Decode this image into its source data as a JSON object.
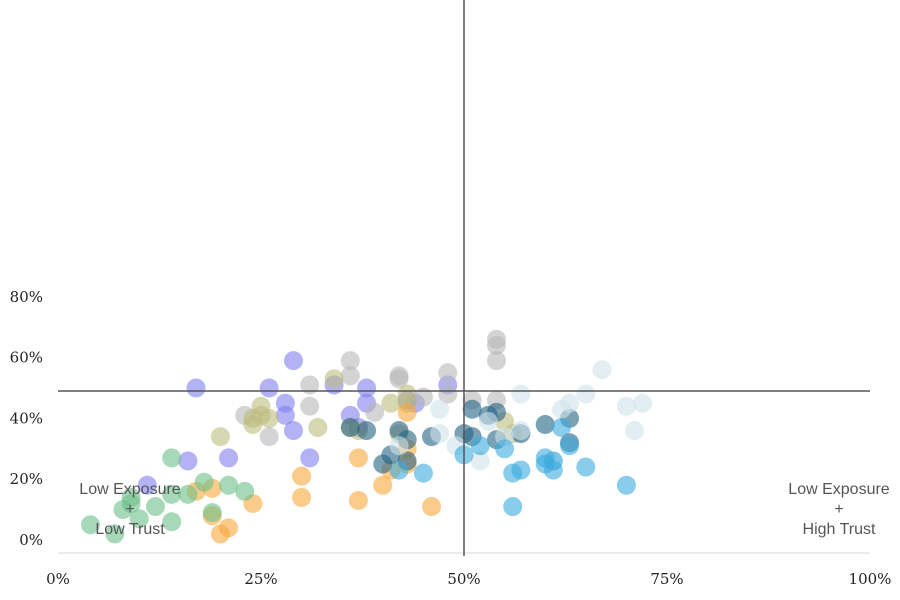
{
  "chart_data": {
    "type": "scatter",
    "title": "",
    "xlabel": "",
    "ylabel": "",
    "xlim": [
      0,
      100
    ],
    "ylim": [
      0,
      90
    ],
    "x_ticks": [
      "0%",
      "25%",
      "50%",
      "75%",
      "100%"
    ],
    "y_ticks": [
      "0%",
      "20%",
      "40%",
      "60%",
      "80%"
    ],
    "grid": false,
    "reference_lines": {
      "x": 50,
      "y": 49
    },
    "quadrant_labels": {
      "bottom_left": [
        "Low Exposure",
        "+",
        "Low Trust"
      ],
      "bottom_right": [
        "Low Exposure",
        "+",
        "High Trust"
      ]
    },
    "series": [
      {
        "color": "#7f7fef",
        "points": [
          [
            11,
            18
          ],
          [
            16,
            26
          ],
          [
            17,
            50
          ],
          [
            21,
            27
          ],
          [
            26,
            50
          ],
          [
            28,
            45
          ],
          [
            29,
            59
          ],
          [
            28,
            41
          ],
          [
            29,
            36
          ],
          [
            31,
            27
          ],
          [
            34,
            51
          ],
          [
            36,
            41
          ],
          [
            37,
            37
          ],
          [
            38,
            50
          ],
          [
            38,
            45
          ],
          [
            43,
            46
          ],
          [
            44,
            45
          ],
          [
            48,
            51
          ]
        ]
      },
      {
        "color": "#b7b7b7",
        "points": [
          [
            23,
            41
          ],
          [
            26,
            34
          ],
          [
            31,
            51
          ],
          [
            31,
            44
          ],
          [
            36,
            59
          ],
          [
            36,
            54
          ],
          [
            39,
            42
          ],
          [
            42,
            54
          ],
          [
            42,
            53
          ],
          [
            45,
            47
          ],
          [
            48,
            55
          ],
          [
            48,
            48
          ],
          [
            54,
            66
          ],
          [
            54,
            64
          ],
          [
            54,
            59
          ],
          [
            54,
            46
          ],
          [
            51,
            46
          ]
        ]
      },
      {
        "color": "#bdbd7f",
        "points": [
          [
            20,
            34
          ],
          [
            24,
            38
          ],
          [
            24,
            40
          ],
          [
            25,
            44
          ],
          [
            25,
            41
          ],
          [
            26,
            40
          ],
          [
            32,
            37
          ],
          [
            34,
            53
          ],
          [
            36,
            37
          ],
          [
            37,
            36
          ],
          [
            41,
            45
          ],
          [
            42,
            35
          ],
          [
            43,
            48
          ],
          [
            43,
            45
          ],
          [
            55,
            39
          ],
          [
            56,
            35
          ]
        ]
      },
      {
        "color": "#f6a83a",
        "points": [
          [
            17,
            16
          ],
          [
            19,
            17
          ],
          [
            19,
            8
          ],
          [
            20,
            2
          ],
          [
            21,
            4
          ],
          [
            24,
            12
          ],
          [
            30,
            21
          ],
          [
            30,
            14
          ],
          [
            37,
            27
          ],
          [
            37,
            13
          ],
          [
            40,
            18
          ],
          [
            41,
            23
          ],
          [
            43,
            42
          ],
          [
            43,
            30
          ],
          [
            43,
            25
          ],
          [
            46,
            11
          ]
        ]
      },
      {
        "color": "#6cbf8a",
        "points": [
          [
            4,
            5
          ],
          [
            7,
            2
          ],
          [
            8,
            10
          ],
          [
            9,
            14
          ],
          [
            9,
            12
          ],
          [
            10,
            7
          ],
          [
            12,
            11
          ],
          [
            14,
            27
          ],
          [
            14,
            15
          ],
          [
            14,
            6
          ],
          [
            16,
            15
          ],
          [
            18,
            19
          ],
          [
            19,
            9
          ],
          [
            21,
            18
          ],
          [
            23,
            16
          ]
        ]
      },
      {
        "color": "#236383",
        "points": [
          [
            36,
            37
          ],
          [
            38,
            36
          ],
          [
            40,
            25
          ],
          [
            41,
            28
          ],
          [
            42,
            36
          ],
          [
            43,
            26
          ],
          [
            43,
            33
          ],
          [
            46,
            34
          ],
          [
            50,
            35
          ],
          [
            51,
            34
          ],
          [
            51,
            43
          ],
          [
            53,
            41
          ],
          [
            54,
            42
          ],
          [
            54,
            33
          ],
          [
            57,
            35
          ],
          [
            60,
            38
          ],
          [
            63,
            40
          ],
          [
            63,
            32
          ]
        ]
      },
      {
        "color": "#cfe3ea",
        "points": [
          [
            42,
            31
          ],
          [
            47,
            43
          ],
          [
            47,
            35
          ],
          [
            49,
            31
          ],
          [
            52,
            26
          ],
          [
            53,
            39
          ],
          [
            55,
            34
          ],
          [
            57,
            36
          ],
          [
            57,
            48
          ],
          [
            61,
            26
          ],
          [
            62,
            43
          ],
          [
            63,
            45
          ],
          [
            65,
            48
          ],
          [
            67,
            56
          ],
          [
            70,
            44
          ],
          [
            71,
            36
          ],
          [
            72,
            45
          ]
        ]
      },
      {
        "color": "#3aaadd",
        "points": [
          [
            42,
            23
          ],
          [
            45,
            22
          ],
          [
            50,
            28
          ],
          [
            52,
            31
          ],
          [
            55,
            30
          ],
          [
            56,
            22
          ],
          [
            56,
            11
          ],
          [
            57,
            23
          ],
          [
            60,
            27
          ],
          [
            60,
            25
          ],
          [
            61,
            26
          ],
          [
            61,
            23
          ],
          [
            62,
            37
          ],
          [
            63,
            31
          ],
          [
            65,
            24
          ],
          [
            70,
            18
          ]
        ]
      }
    ]
  }
}
